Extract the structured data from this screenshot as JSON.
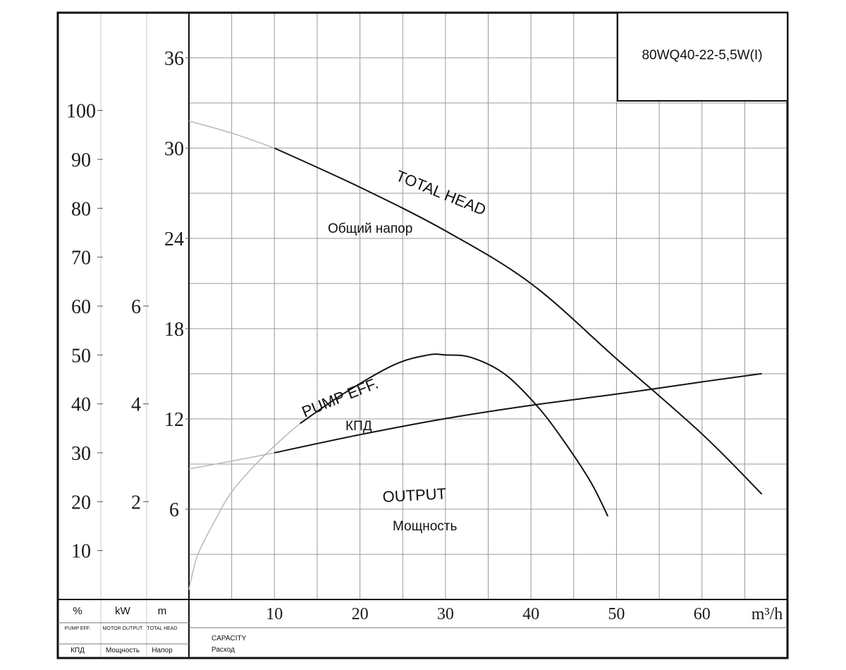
{
  "chart_data": {
    "type": "line",
    "model": "80WQ40-22-5,5W(I)",
    "x_axis": {
      "range": [
        0,
        70
      ],
      "ticks": [
        10,
        20,
        30,
        40,
        50,
        60
      ],
      "unit": "m³/h",
      "label_en": "CAPACITY",
      "label_ru": "Расход"
    },
    "y_axes": [
      {
        "id": "eff",
        "unit": "%",
        "sub_en": "PUMP EFF.",
        "sub_ru": "КПД",
        "range": [
          0,
          120
        ],
        "ticks": [
          10,
          20,
          30,
          40,
          50,
          60,
          70,
          80,
          90,
          100
        ]
      },
      {
        "id": "power",
        "unit": "kW",
        "sub_en": "MOTOR OUTPUT",
        "sub_ru": "Мощность",
        "range": [
          0,
          12
        ],
        "ticks": [
          2,
          4,
          6
        ]
      },
      {
        "id": "head",
        "unit": "m",
        "sub_en": "TOTAL HEAD",
        "sub_ru": "Напор",
        "range": [
          0,
          39
        ],
        "ticks": [
          6,
          12,
          18,
          24,
          30,
          36
        ]
      }
    ],
    "grid": true,
    "series": [
      {
        "id": "head",
        "name": "TOTAL HEAD",
        "name_ru": "Общий напор",
        "axis": "head",
        "x": [
          10,
          20,
          30,
          40,
          50,
          60,
          67
        ],
        "y": [
          30.0,
          27.4,
          24.5,
          21.0,
          16.0,
          11.0,
          7.0
        ],
        "extension_x": [
          0,
          5,
          10
        ],
        "extension_y": [
          31.8,
          31.0,
          30.0
        ]
      },
      {
        "id": "eff",
        "name": "PUMP EFF.",
        "name_ru": "КПД",
        "axis": "eff",
        "x": [
          13,
          18,
          24,
          28,
          30,
          33,
          37,
          41,
          44,
          47,
          49
        ],
        "y": [
          36.0,
          42.0,
          48.0,
          50.0,
          50.0,
          49.5,
          46.0,
          39.0,
          32.0,
          24.0,
          17.0
        ],
        "extension_x": [
          0,
          1,
          3,
          5,
          8,
          11,
          13
        ],
        "extension_y": [
          2.0,
          9.0,
          16.0,
          22.0,
          28.0,
          33.0,
          36.0
        ]
      },
      {
        "id": "output",
        "name": "OUTPUT",
        "name_ru": "Мощность",
        "axis": "power",
        "x": [
          10,
          20,
          30,
          40,
          50,
          60,
          67
        ],
        "y": [
          3.0,
          3.37,
          3.7,
          3.97,
          4.2,
          4.45,
          4.62
        ],
        "extension_x": [
          0,
          5,
          10
        ],
        "extension_y": [
          2.67,
          2.83,
          3.0
        ]
      }
    ]
  }
}
